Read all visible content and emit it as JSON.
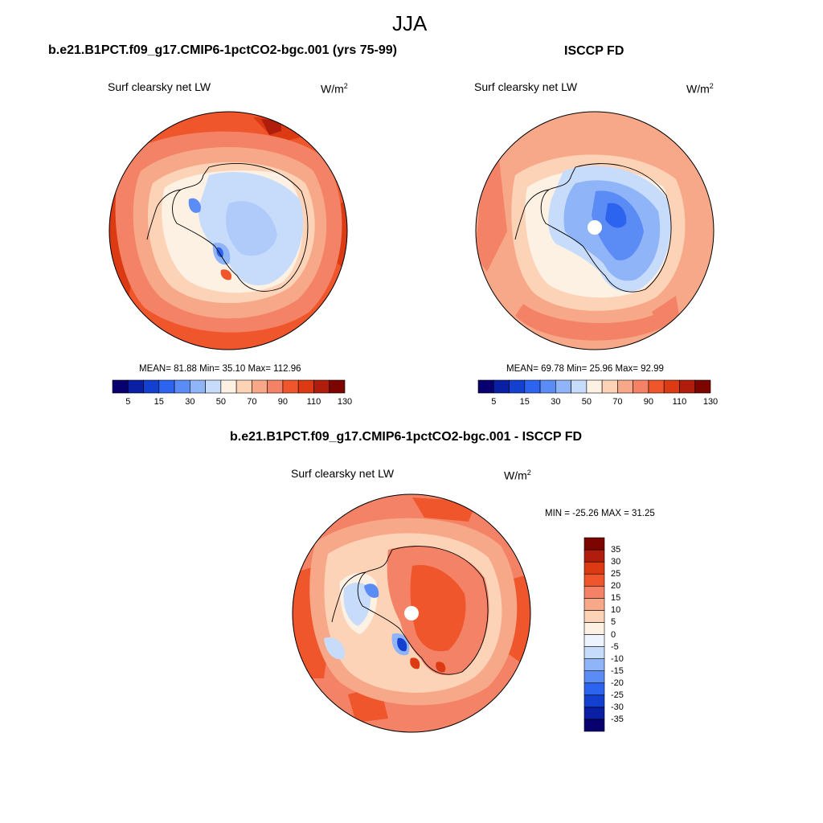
{
  "figure": {
    "title": "JJA"
  },
  "panels": [
    {
      "title": "b.e21.B1PCT.f09_g17.CMIP6-1pctCO2-bgc.001 (yrs 75-99)",
      "variable": "Surf clearsky net LW",
      "units_base": "W/m",
      "units_exp": "2",
      "stats": "MEAN=  81.88  Min=  35.10  Max= 112.96"
    },
    {
      "title": "ISCCP FD",
      "variable": "Surf clearsky net LW",
      "units_base": "W/m",
      "units_exp": "2",
      "stats": "MEAN=  69.78  Min=  25.96  Max=  92.99"
    },
    {
      "title": "b.e21.B1PCT.f09_g17.CMIP6-1pctCO2-bgc.001 - ISCCP FD",
      "variable": "Surf clearsky net LW",
      "units_base": "W/m",
      "units_exp": "2",
      "stats": "MIN = -25.26 MAX =  31.25"
    }
  ],
  "colorbar_abs": {
    "colors": [
      "#08006e",
      "#0a1fa3",
      "#1440d0",
      "#2d64ef",
      "#5b8cf5",
      "#90b4f8",
      "#c7dcfb",
      "#fdf1e4",
      "#fdd3b8",
      "#f7a888",
      "#f48266",
      "#f0562b",
      "#dc3a12",
      "#b11d0c",
      "#7c0500"
    ],
    "labels": [
      "5",
      "15",
      "30",
      "50",
      "70",
      "90",
      "110",
      "130"
    ]
  },
  "colorbar_diff": {
    "colors": [
      "#08006e",
      "#0a1fa3",
      "#1440d0",
      "#2d64ef",
      "#5b8cf5",
      "#90b4f8",
      "#c7dcfb",
      "#eef4fd",
      "#fdf1e4",
      "#fdd3b8",
      "#f7a888",
      "#f48266",
      "#f0562b",
      "#dc3a12",
      "#b11d0c",
      "#7c0500"
    ],
    "labels": [
      "35",
      "30",
      "25",
      "20",
      "15",
      "10",
      "5",
      "0",
      "-5",
      "-10",
      "-15",
      "-20",
      "-25",
      "-30",
      "-35"
    ]
  }
}
